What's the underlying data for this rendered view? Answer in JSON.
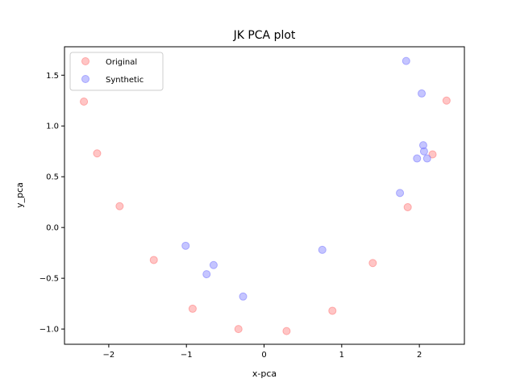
{
  "chart_data": {
    "type": "scatter",
    "title": "JK PCA plot",
    "xlabel": "x-pca",
    "ylabel": "y_pca",
    "xlim": [
      -2.57,
      2.58
    ],
    "ylim": [
      -1.15,
      1.78
    ],
    "xticks": [
      -2,
      -1,
      0,
      1,
      2
    ],
    "xtick_labels": [
      "−2",
      "−1",
      "0",
      "1",
      "2"
    ],
    "yticks": [
      -1.0,
      -0.5,
      0.0,
      0.5,
      1.0,
      1.5
    ],
    "ytick_labels": [
      "−1.0",
      "−0.5",
      "0.0",
      "0.5",
      "1.0",
      "1.5"
    ],
    "grid": false,
    "legend_position": "top-left",
    "series": [
      {
        "name": "Original",
        "color": "#ff7f7f",
        "points": [
          {
            "x": -2.32,
            "y": 1.24
          },
          {
            "x": -2.15,
            "y": 0.73
          },
          {
            "x": -1.86,
            "y": 0.21
          },
          {
            "x": -1.42,
            "y": -0.32
          },
          {
            "x": -0.92,
            "y": -0.8
          },
          {
            "x": -0.33,
            "y": -1.0
          },
          {
            "x": 0.29,
            "y": -1.02
          },
          {
            "x": 0.88,
            "y": -0.82
          },
          {
            "x": 1.4,
            "y": -0.35
          },
          {
            "x": 1.85,
            "y": 0.2
          },
          {
            "x": 2.17,
            "y": 0.72
          },
          {
            "x": 2.35,
            "y": 1.25
          }
        ]
      },
      {
        "name": "Synthetic",
        "color": "#7f7fff",
        "points": [
          {
            "x": 1.83,
            "y": 1.64
          },
          {
            "x": 2.03,
            "y": 1.32
          },
          {
            "x": 2.05,
            "y": 0.81
          },
          {
            "x": 2.06,
            "y": 0.75
          },
          {
            "x": 1.97,
            "y": 0.68
          },
          {
            "x": 2.1,
            "y": 0.68
          },
          {
            "x": 1.75,
            "y": 0.34
          },
          {
            "x": 0.75,
            "y": -0.22
          },
          {
            "x": -1.01,
            "y": -0.18
          },
          {
            "x": -0.65,
            "y": -0.37
          },
          {
            "x": -0.74,
            "y": -0.46
          },
          {
            "x": -0.27,
            "y": -0.68
          }
        ]
      }
    ]
  }
}
